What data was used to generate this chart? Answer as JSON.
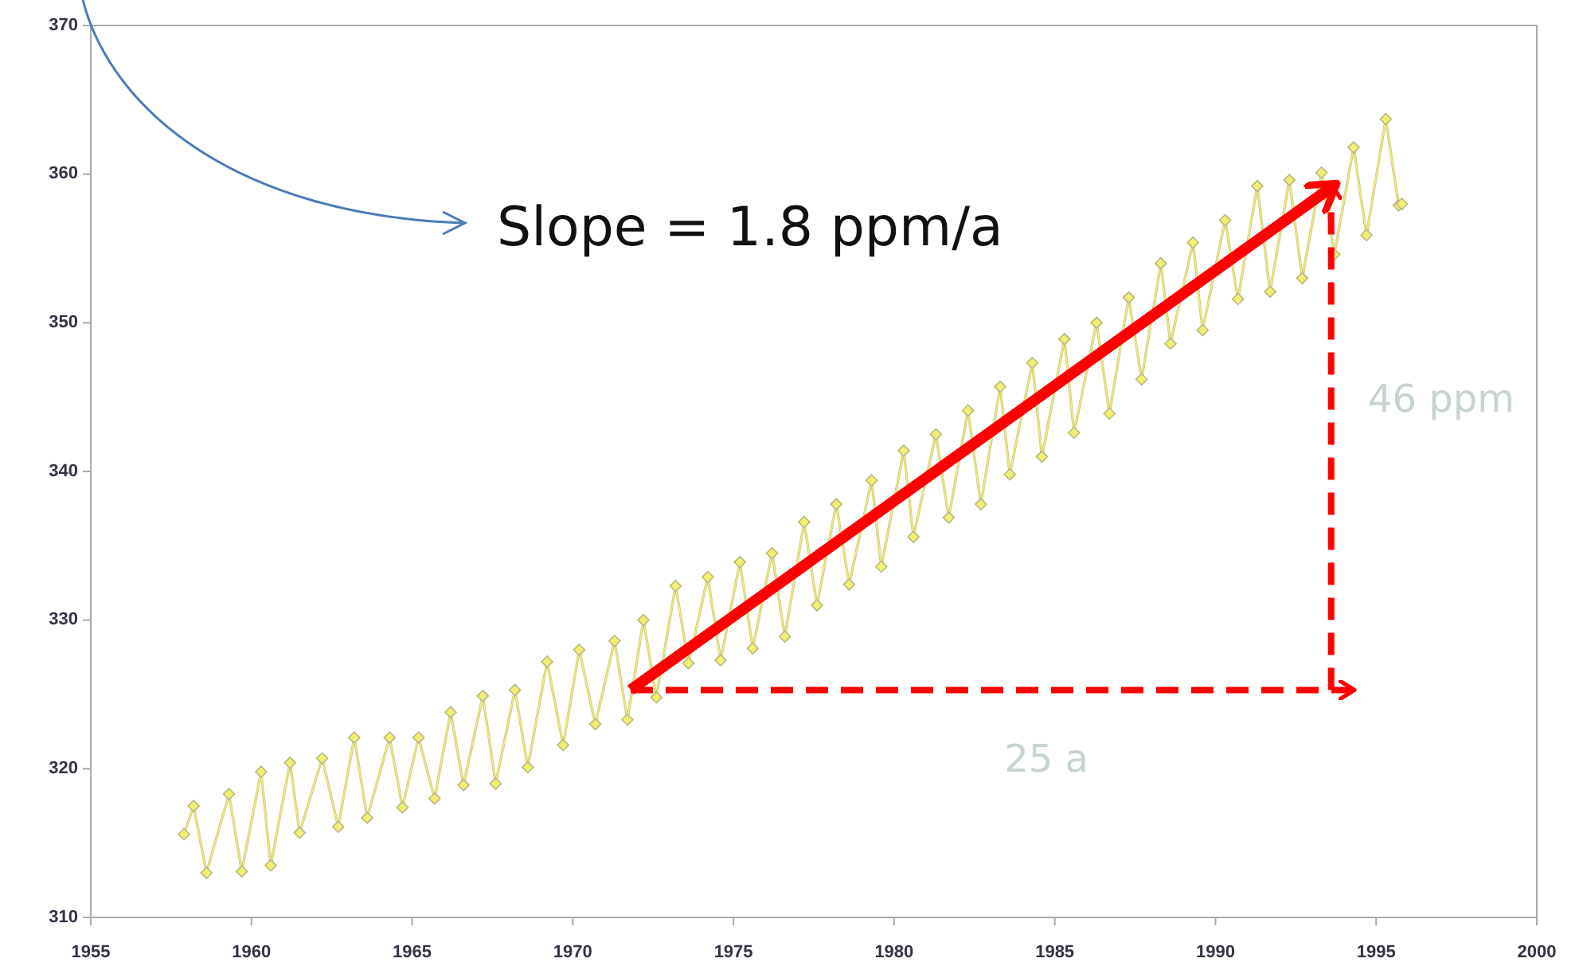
{
  "chart_data": {
    "type": "line",
    "xlim": [
      1955,
      2000
    ],
    "xticks": [
      1955,
      1960,
      1965,
      1970,
      1975,
      1980,
      1985,
      1990,
      1995,
      2000
    ],
    "ylim": [
      310,
      370
    ],
    "yticks": [
      310,
      320,
      330,
      340,
      350,
      360,
      370
    ],
    "grid": false,
    "series": [
      {
        "type": "line",
        "color": "#f2ee70",
        "marker": "diamond",
        "x": [
          1957.9,
          1958.2,
          1958.6,
          1959.3,
          1959.7,
          1960.3,
          1960.6,
          1961.2,
          1961.5,
          1962.2,
          1962.7,
          1963.2,
          1963.6,
          1964.3,
          1964.7,
          1965.2,
          1965.7,
          1966.2,
          1966.6,
          1967.2,
          1967.6,
          1968.2,
          1968.6,
          1969.2,
          1969.7,
          1970.2,
          1970.7,
          1971.3,
          1971.7,
          1972.2,
          1972.6,
          1973.2,
          1973.6,
          1974.2,
          1974.6,
          1975.2,
          1975.6,
          1976.2,
          1976.6,
          1977.2,
          1977.6,
          1978.2,
          1978.6,
          1979.3,
          1979.6,
          1980.3,
          1980.6,
          1981.3,
          1981.7,
          1982.3,
          1982.7,
          1983.3,
          1983.6,
          1984.3,
          1984.6,
          1985.3,
          1985.6,
          1986.3,
          1986.7,
          1987.3,
          1987.7,
          1988.3,
          1988.6,
          1989.3,
          1989.6,
          1990.3,
          1990.7,
          1991.3,
          1991.7,
          1992.3,
          1992.7,
          1993.3,
          1993.7,
          1994.3,
          1994.7,
          1995.3,
          1995.7,
          1995.8
        ],
        "values": [
          315.6,
          317.5,
          313.0,
          318.3,
          313.1,
          319.8,
          313.5,
          320.4,
          315.7,
          320.7,
          316.1,
          322.1,
          316.7,
          322.1,
          317.4,
          322.1,
          318.0,
          323.8,
          318.9,
          324.9,
          319.0,
          325.3,
          320.1,
          327.2,
          321.6,
          328.0,
          323.0,
          328.6,
          323.3,
          330.0,
          324.8,
          332.3,
          327.1,
          332.9,
          327.3,
          333.9,
          328.1,
          334.5,
          328.9,
          336.6,
          331.0,
          337.8,
          332.4,
          339.4,
          333.6,
          341.4,
          335.6,
          342.5,
          336.9,
          344.1,
          337.8,
          345.7,
          339.8,
          347.3,
          341.0,
          348.9,
          342.6,
          350.0,
          343.9,
          351.7,
          346.2,
          354.0,
          348.6,
          355.4,
          349.5,
          356.9,
          351.6,
          359.2,
          352.1,
          359.6,
          353.0,
          360.1,
          354.6,
          361.8,
          355.9,
          363.7,
          357.9,
          358.0
        ]
      },
      {
        "type": "line",
        "color": "#ff0000",
        "line_style": "solid",
        "x": [
          1971.8,
          1993.6
        ],
        "values": [
          325.3,
          359.1
        ]
      },
      {
        "type": "line",
        "color": "#ff0000",
        "line_style": "dashed",
        "x": [
          1971.8,
          1994.2
        ],
        "values": [
          325.3,
          325.3
        ]
      },
      {
        "type": "line",
        "color": "#ff0000",
        "line_style": "dashed",
        "x": [
          1993.6,
          1993.6
        ],
        "values": [
          325.3,
          359.1
        ]
      }
    ],
    "annotations": [
      "Slope = 1.8 ppm/a",
      "46 ppm",
      "25 a"
    ]
  }
}
